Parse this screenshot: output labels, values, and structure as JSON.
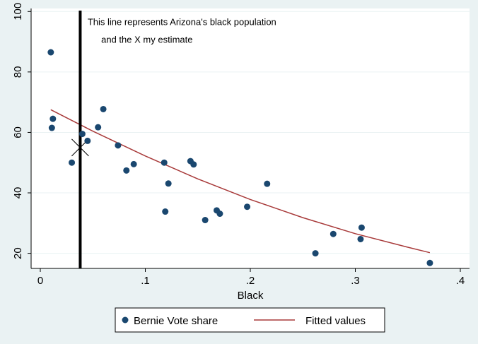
{
  "chart_data": {
    "type": "scatter",
    "title": "",
    "xlabel": "Black",
    "ylabel": "",
    "xlim": [
      0,
      0.4
    ],
    "ylim": [
      15,
      101
    ],
    "x_ticks": [
      0,
      0.1,
      0.2,
      0.3,
      0.4
    ],
    "x_tick_labels": [
      "0",
      ".1",
      ".2",
      ".3",
      ".4"
    ],
    "y_ticks": [
      20,
      40,
      60,
      80,
      100
    ],
    "y_tick_labels": [
      "20",
      "40",
      "60",
      "80",
      "100"
    ],
    "grid": "horizontal",
    "series": [
      {
        "name": "Bernie Vote share",
        "kind": "scatter",
        "color": "#1a476f",
        "points": [
          {
            "x": 0.01,
            "y": 86.5
          },
          {
            "x": 0.011,
            "y": 61.5
          },
          {
            "x": 0.012,
            "y": 64.5
          },
          {
            "x": 0.03,
            "y": 50.0
          },
          {
            "x": 0.04,
            "y": 59.5
          },
          {
            "x": 0.045,
            "y": 57.2
          },
          {
            "x": 0.055,
            "y": 61.7
          },
          {
            "x": 0.06,
            "y": 67.7
          },
          {
            "x": 0.074,
            "y": 55.7
          },
          {
            "x": 0.082,
            "y": 47.4
          },
          {
            "x": 0.089,
            "y": 49.5
          },
          {
            "x": 0.118,
            "y": 50.0
          },
          {
            "x": 0.119,
            "y": 33.8
          },
          {
            "x": 0.122,
            "y": 43.1
          },
          {
            "x": 0.143,
            "y": 50.5
          },
          {
            "x": 0.146,
            "y": 49.4
          },
          {
            "x": 0.157,
            "y": 31.0
          },
          {
            "x": 0.168,
            "y": 34.2
          },
          {
            "x": 0.171,
            "y": 33.1
          },
          {
            "x": 0.197,
            "y": 35.4
          },
          {
            "x": 0.216,
            "y": 43.0
          },
          {
            "x": 0.262,
            "y": 20.0
          },
          {
            "x": 0.279,
            "y": 26.4
          },
          {
            "x": 0.305,
            "y": 24.7
          },
          {
            "x": 0.306,
            "y": 28.5
          },
          {
            "x": 0.371,
            "y": 16.8
          }
        ]
      },
      {
        "name": "Fitted values",
        "kind": "line",
        "color": "#a83a3a",
        "points": [
          {
            "x": 0.01,
            "y": 67.5
          },
          {
            "x": 0.05,
            "y": 60.4
          },
          {
            "x": 0.1,
            "y": 52.2
          },
          {
            "x": 0.15,
            "y": 44.6
          },
          {
            "x": 0.2,
            "y": 37.8
          },
          {
            "x": 0.25,
            "y": 31.8
          },
          {
            "x": 0.3,
            "y": 26.5
          },
          {
            "x": 0.35,
            "y": 22.0
          },
          {
            "x": 0.371,
            "y": 20.2
          }
        ]
      }
    ],
    "reference_line": {
      "x": 0.038,
      "color": "#000000"
    },
    "estimate_marker": {
      "x": 0.038,
      "y": 55.0
    },
    "annotations": [
      {
        "text": "This line represents Arizona's black population",
        "x": 0.045,
        "y": 95.5
      },
      {
        "text": "and the X my estimate",
        "x": 0.058,
        "y": 89.7
      }
    ],
    "legend": {
      "position": "bottom",
      "entries": [
        "Bernie Vote share",
        "Fitted values"
      ]
    }
  }
}
